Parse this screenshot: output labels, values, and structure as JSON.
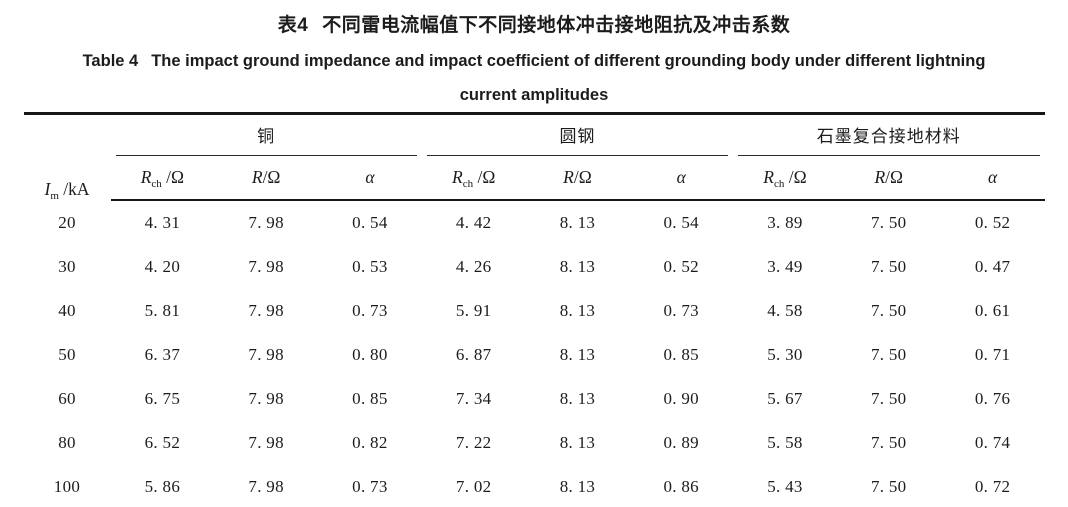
{
  "colors": {
    "text": "#1c1c1c",
    "background": "#ffffff",
    "rule": "#161616"
  },
  "captions": {
    "zh_label": "表4",
    "zh_title": "不同雷电流幅值下不同接地体冲击接地阻抗及冲击系数",
    "en_label": "Table 4",
    "en_line1": "The impact ground impedance and impact coefficient of different grounding body under different lightning",
    "en_line2": "current amplitudes"
  },
  "headers": {
    "im": {
      "base": "I",
      "sub": "m",
      "rest": " /kA"
    },
    "groups": [
      "铜",
      "圆钢",
      "石墨复合接地材料"
    ],
    "cols": [
      {
        "base": "R",
        "sub": "ch",
        "rest": " /Ω"
      },
      {
        "base": "R",
        "sub": "",
        "rest": "/Ω"
      },
      {
        "base": "α",
        "sub": "",
        "rest": ""
      }
    ]
  },
  "table": {
    "rows": [
      [
        "20",
        "4. 31",
        "7. 98",
        "0. 54",
        "4. 42",
        "8. 13",
        "0. 54",
        "3. 89",
        "7. 50",
        "0. 52"
      ],
      [
        "30",
        "4. 20",
        "7. 98",
        "0. 53",
        "4. 26",
        "8. 13",
        "0. 52",
        "3. 49",
        "7. 50",
        "0. 47"
      ],
      [
        "40",
        "5. 81",
        "7. 98",
        "0. 73",
        "5. 91",
        "8. 13",
        "0. 73",
        "4. 58",
        "7. 50",
        "0. 61"
      ],
      [
        "50",
        "6. 37",
        "7. 98",
        "0. 80",
        "6. 87",
        "8. 13",
        "0. 85",
        "5. 30",
        "7. 50",
        "0. 71"
      ],
      [
        "60",
        "6. 75",
        "7. 98",
        "0. 85",
        "7. 34",
        "8. 13",
        "0. 90",
        "5. 67",
        "7. 50",
        "0. 76"
      ],
      [
        "80",
        "6. 52",
        "7. 98",
        "0. 82",
        "7. 22",
        "8. 13",
        "0. 89",
        "5. 58",
        "7. 50",
        "0. 74"
      ],
      [
        "100",
        "5. 86",
        "7. 98",
        "0. 73",
        "7. 02",
        "8. 13",
        "0. 86",
        "5. 43",
        "7. 50",
        "0. 72"
      ]
    ]
  },
  "chart_data": {
    "type": "table",
    "title_zh": "表4 不同雷电流幅值下不同接地体冲击接地阻抗及冲击系数",
    "title_en": "Table 4 The impact ground impedance and impact coefficient of different grounding body under different lightning current amplitudes",
    "column_groups": [
      "铜",
      "圆钢",
      "石墨复合接地材料"
    ],
    "columns": [
      "Im/kA",
      "Rch/Ω",
      "R/Ω",
      "α",
      "Rch/Ω",
      "R/Ω",
      "α",
      "Rch/Ω",
      "R/Ω",
      "α"
    ],
    "rows": [
      [
        20,
        4.31,
        7.98,
        0.54,
        4.42,
        8.13,
        0.54,
        3.89,
        7.5,
        0.52
      ],
      [
        30,
        4.2,
        7.98,
        0.53,
        4.26,
        8.13,
        0.52,
        3.49,
        7.5,
        0.47
      ],
      [
        40,
        5.81,
        7.98,
        0.73,
        5.91,
        8.13,
        0.73,
        4.58,
        7.5,
        0.61
      ],
      [
        50,
        6.37,
        7.98,
        0.8,
        6.87,
        8.13,
        0.85,
        5.3,
        7.5,
        0.71
      ],
      [
        60,
        6.75,
        7.98,
        0.85,
        7.34,
        8.13,
        0.9,
        5.67,
        7.5,
        0.76
      ],
      [
        80,
        6.52,
        7.98,
        0.82,
        7.22,
        8.13,
        0.89,
        5.58,
        7.5,
        0.74
      ],
      [
        100,
        5.86,
        7.98,
        0.73,
        7.02,
        8.13,
        0.86,
        5.43,
        7.5,
        0.72
      ]
    ]
  }
}
